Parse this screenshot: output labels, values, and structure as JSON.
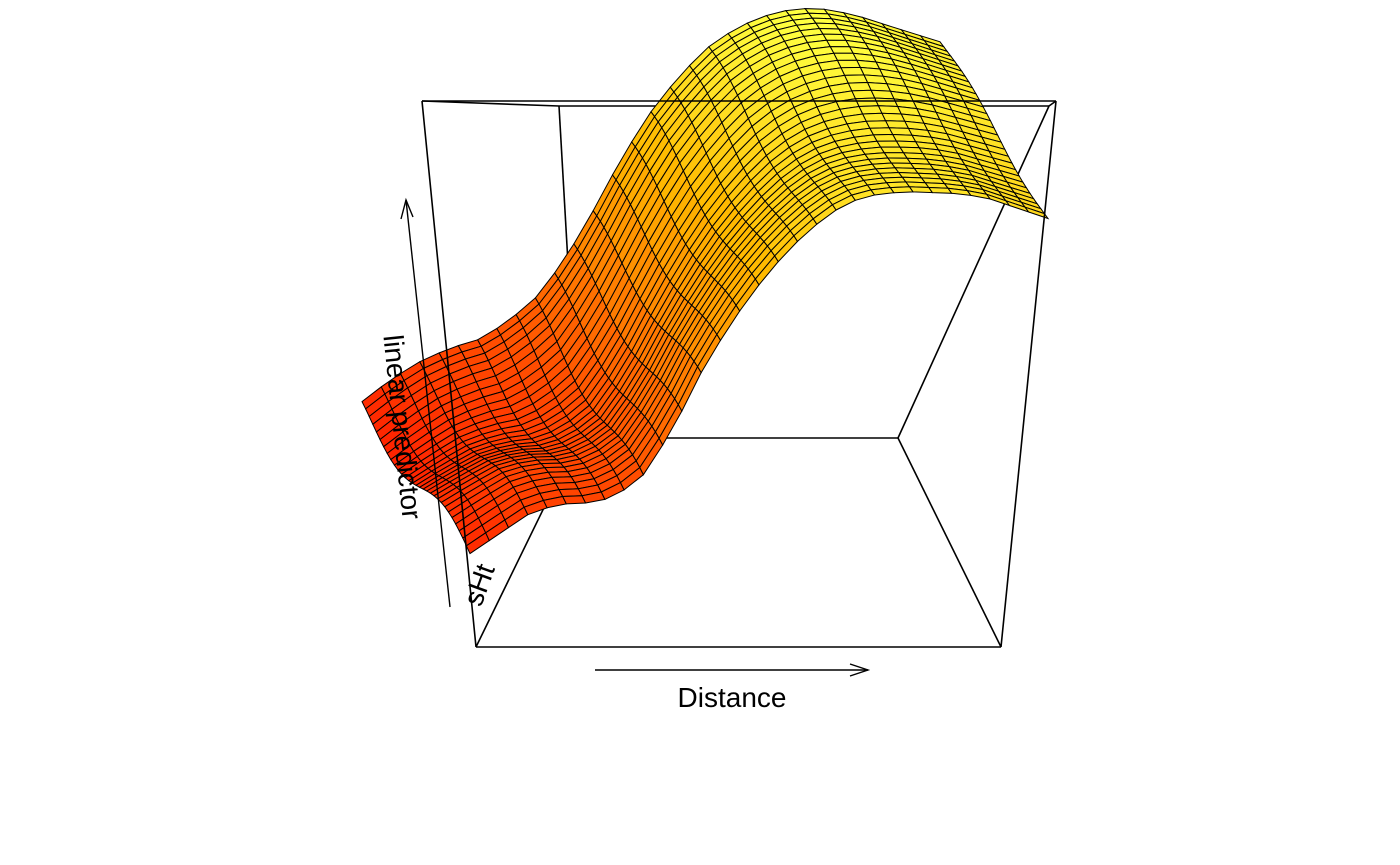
{
  "chart_data": {
    "type": "surface",
    "title": "",
    "xlabel": "Distance",
    "ylabel": "linear predictor",
    "depth_label": "sHt",
    "view": {
      "theta": 0,
      "phi": 30
    },
    "colors": {
      "low": "#ff1a00",
      "high": "#ffff40",
      "mesh": "#000000"
    },
    "grid": {
      "nx": 30,
      "ny": 30
    },
    "surface_profile": {
      "distance": [
        0.0,
        0.05,
        0.1,
        0.15,
        0.2,
        0.25,
        0.3,
        0.35,
        0.4,
        0.45,
        0.5,
        0.55,
        0.6,
        0.65,
        0.7,
        0.75,
        0.8,
        0.85,
        0.9,
        0.95,
        1.0
      ],
      "value_near": [
        0.06,
        0.1,
        0.14,
        0.16,
        0.16,
        0.17,
        0.22,
        0.32,
        0.45,
        0.56,
        0.65,
        0.73,
        0.79,
        0.84,
        0.86,
        0.87,
        0.87,
        0.87,
        0.86,
        0.84,
        0.82
      ],
      "value_far": [
        0.05,
        0.1,
        0.14,
        0.17,
        0.19,
        0.23,
        0.29,
        0.38,
        0.5,
        0.63,
        0.74,
        0.83,
        0.9,
        0.95,
        0.98,
        1.0,
        1.0,
        0.99,
        0.97,
        0.95,
        0.93
      ]
    }
  }
}
